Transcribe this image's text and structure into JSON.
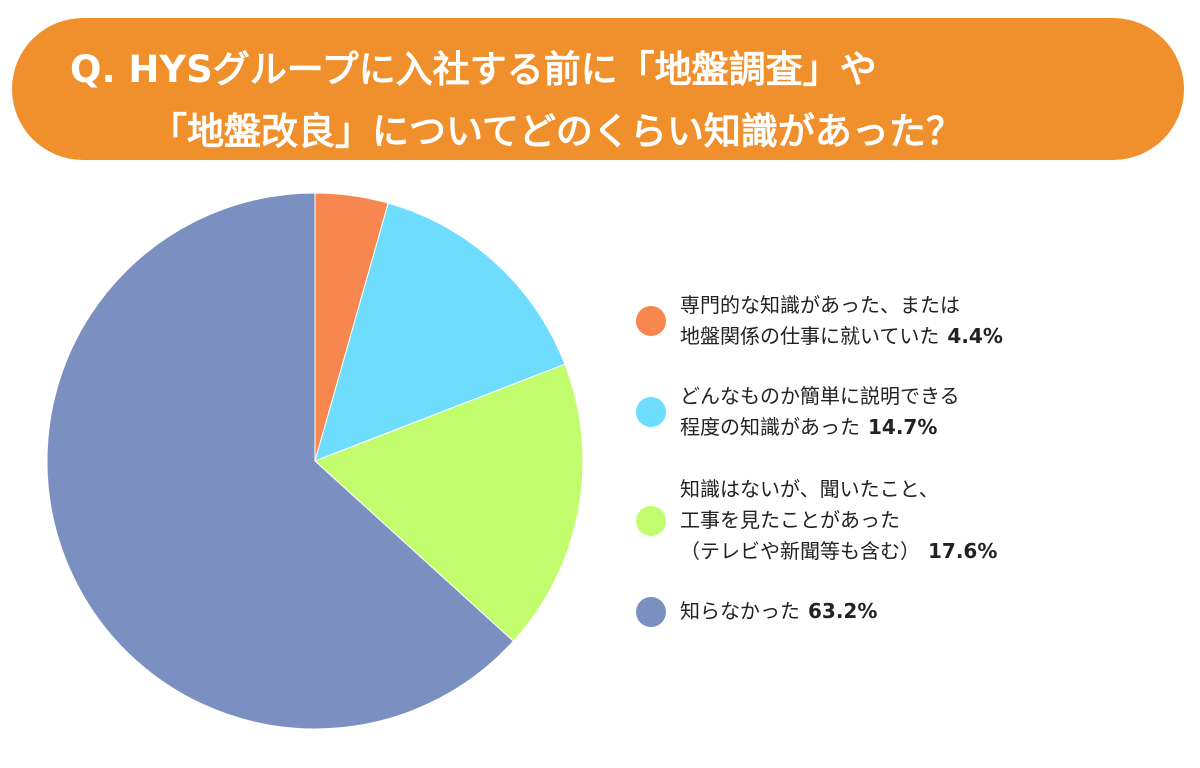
{
  "banner": {
    "line1": "Q. HYSグループに入社する前に「地盤調査」や",
    "line2": "「地盤改良」についてどのくらい知識があった？",
    "color": "#f0902c"
  },
  "chart_data": {
    "type": "pie",
    "start_angle_deg": 0,
    "direction": "clockwise",
    "slices": [
      {
        "label_lines": [
          "専門的な知識があった、または",
          "地盤関係の仕事に就いていた"
        ],
        "value": 4.4,
        "pct_label": "4.4%",
        "color": "#f8874f"
      },
      {
        "label_lines": [
          "どんなものか簡単に説明できる",
          "程度の知識があった"
        ],
        "value": 14.7,
        "pct_label": "14.7%",
        "color": "#6ddcfd"
      },
      {
        "label_lines": [
          "知識はないが、聞いたこと、",
          "工事を見たことがあった",
          "（テレビや新聞等も含む）"
        ],
        "value": 17.6,
        "pct_label": "17.6%",
        "color": "#c1fd6d"
      },
      {
        "label_lines": [
          "知らなかった"
        ],
        "value": 63.2,
        "pct_label": "63.2%",
        "color": "#7b8fc1"
      }
    ]
  }
}
